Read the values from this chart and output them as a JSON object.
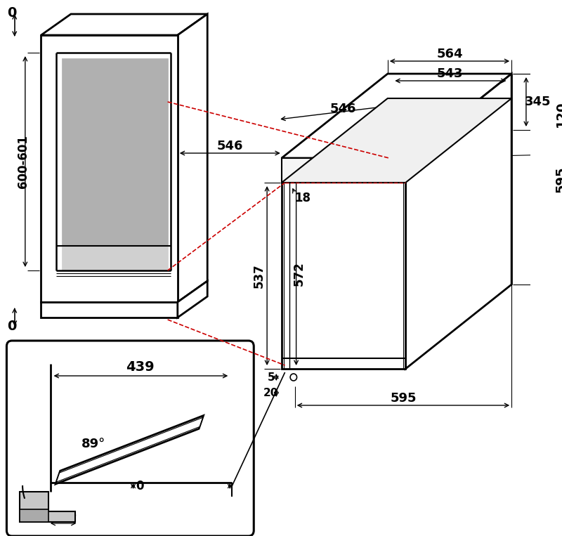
{
  "bg_color": "#ffffff",
  "lc": "#000000",
  "rc": "#cc0000",
  "gc": "#b0b0b0",
  "gc2": "#d0d0d0",
  "fs": 12,
  "fw": "bold"
}
